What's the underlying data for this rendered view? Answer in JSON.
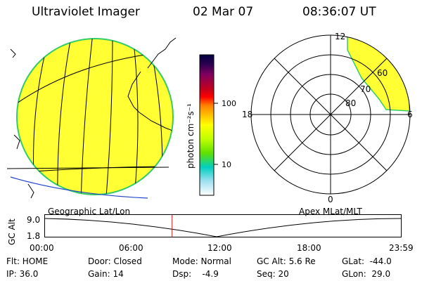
{
  "header": {
    "instrument": "Ultraviolet Imager",
    "date": "02 Mar 07",
    "time": "08:36:07 UT"
  },
  "colorbar": {
    "unit_label": "photon cm⁻²s⁻¹",
    "ticks": [
      {
        "value": 100,
        "label": "100"
      },
      {
        "value": 10,
        "label": "10"
      }
    ],
    "colors": [
      "#000040",
      "#300050",
      "#800060",
      "#c00020",
      "#ff0000",
      "#ff8000",
      "#ffc000",
      "#ffff00",
      "#c0ff00",
      "#60e000",
      "#00d0c0",
      "#a0e0f0",
      "#ffffff"
    ]
  },
  "geo_map": {
    "fill_color": "#ffff33",
    "rim_color": "#33cc66",
    "label": "Geographic Lat/Lon"
  },
  "polar_plot": {
    "label": "Apex MLat/MLT",
    "mlt_labels": {
      "top": "12",
      "bottom": "0",
      "left": "18",
      "right": "6"
    },
    "lat_labels": [
      "60",
      "70",
      "80"
    ]
  },
  "alt_plot": {
    "axis_label": "GC Alt",
    "y_ticks": [
      "9.0",
      "1.8"
    ],
    "x_ticks": [
      "00:00",
      "06:00",
      "12:00",
      "18:00",
      "23:59"
    ],
    "marker_time_hours": 8.6
  },
  "info": {
    "flt": "Flt: HOME",
    "ip": "IP: 36.0",
    "door": "Door: Closed",
    "gain": "Gain: 14",
    "mode": "Mode: Normal",
    "dsp": "Dsp:    -4.9",
    "gc_alt": "GC Alt: 5.6 Re",
    "seq": "Seq: 20",
    "glat": "GLat:  -44.0",
    "glon": "GLon:  29.0"
  }
}
